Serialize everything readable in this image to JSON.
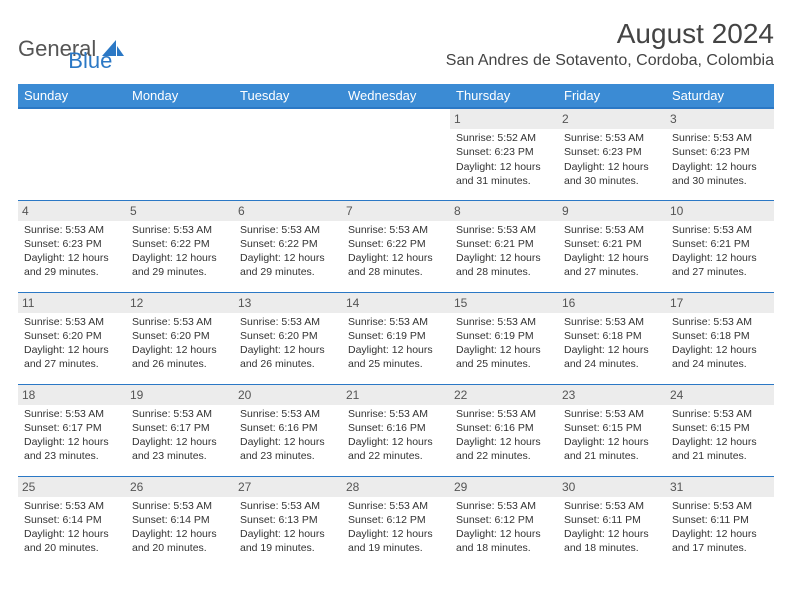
{
  "logo": {
    "text1": "General",
    "text2": "Blue",
    "sail_color": "#2b78c5"
  },
  "header": {
    "title": "August 2024",
    "location": "San Andres de Sotavento, Cordoba, Colombia"
  },
  "colors": {
    "header_bg": "#3b8bd4",
    "header_border": "#2b78c5",
    "daynum_bg": "#ececec",
    "text": "#333333"
  },
  "weekdays": [
    "Sunday",
    "Monday",
    "Tuesday",
    "Wednesday",
    "Thursday",
    "Friday",
    "Saturday"
  ],
  "weeks": [
    [
      {
        "empty": true
      },
      {
        "empty": true
      },
      {
        "empty": true
      },
      {
        "empty": true
      },
      {
        "day": "1",
        "sunrise": "Sunrise: 5:52 AM",
        "sunset": "Sunset: 6:23 PM",
        "daylight": "Daylight: 12 hours and 31 minutes."
      },
      {
        "day": "2",
        "sunrise": "Sunrise: 5:53 AM",
        "sunset": "Sunset: 6:23 PM",
        "daylight": "Daylight: 12 hours and 30 minutes."
      },
      {
        "day": "3",
        "sunrise": "Sunrise: 5:53 AM",
        "sunset": "Sunset: 6:23 PM",
        "daylight": "Daylight: 12 hours and 30 minutes."
      }
    ],
    [
      {
        "day": "4",
        "sunrise": "Sunrise: 5:53 AM",
        "sunset": "Sunset: 6:23 PM",
        "daylight": "Daylight: 12 hours and 29 minutes."
      },
      {
        "day": "5",
        "sunrise": "Sunrise: 5:53 AM",
        "sunset": "Sunset: 6:22 PM",
        "daylight": "Daylight: 12 hours and 29 minutes."
      },
      {
        "day": "6",
        "sunrise": "Sunrise: 5:53 AM",
        "sunset": "Sunset: 6:22 PM",
        "daylight": "Daylight: 12 hours and 29 minutes."
      },
      {
        "day": "7",
        "sunrise": "Sunrise: 5:53 AM",
        "sunset": "Sunset: 6:22 PM",
        "daylight": "Daylight: 12 hours and 28 minutes."
      },
      {
        "day": "8",
        "sunrise": "Sunrise: 5:53 AM",
        "sunset": "Sunset: 6:21 PM",
        "daylight": "Daylight: 12 hours and 28 minutes."
      },
      {
        "day": "9",
        "sunrise": "Sunrise: 5:53 AM",
        "sunset": "Sunset: 6:21 PM",
        "daylight": "Daylight: 12 hours and 27 minutes."
      },
      {
        "day": "10",
        "sunrise": "Sunrise: 5:53 AM",
        "sunset": "Sunset: 6:21 PM",
        "daylight": "Daylight: 12 hours and 27 minutes."
      }
    ],
    [
      {
        "day": "11",
        "sunrise": "Sunrise: 5:53 AM",
        "sunset": "Sunset: 6:20 PM",
        "daylight": "Daylight: 12 hours and 27 minutes."
      },
      {
        "day": "12",
        "sunrise": "Sunrise: 5:53 AM",
        "sunset": "Sunset: 6:20 PM",
        "daylight": "Daylight: 12 hours and 26 minutes."
      },
      {
        "day": "13",
        "sunrise": "Sunrise: 5:53 AM",
        "sunset": "Sunset: 6:20 PM",
        "daylight": "Daylight: 12 hours and 26 minutes."
      },
      {
        "day": "14",
        "sunrise": "Sunrise: 5:53 AM",
        "sunset": "Sunset: 6:19 PM",
        "daylight": "Daylight: 12 hours and 25 minutes."
      },
      {
        "day": "15",
        "sunrise": "Sunrise: 5:53 AM",
        "sunset": "Sunset: 6:19 PM",
        "daylight": "Daylight: 12 hours and 25 minutes."
      },
      {
        "day": "16",
        "sunrise": "Sunrise: 5:53 AM",
        "sunset": "Sunset: 6:18 PM",
        "daylight": "Daylight: 12 hours and 24 minutes."
      },
      {
        "day": "17",
        "sunrise": "Sunrise: 5:53 AM",
        "sunset": "Sunset: 6:18 PM",
        "daylight": "Daylight: 12 hours and 24 minutes."
      }
    ],
    [
      {
        "day": "18",
        "sunrise": "Sunrise: 5:53 AM",
        "sunset": "Sunset: 6:17 PM",
        "daylight": "Daylight: 12 hours and 23 minutes."
      },
      {
        "day": "19",
        "sunrise": "Sunrise: 5:53 AM",
        "sunset": "Sunset: 6:17 PM",
        "daylight": "Daylight: 12 hours and 23 minutes."
      },
      {
        "day": "20",
        "sunrise": "Sunrise: 5:53 AM",
        "sunset": "Sunset: 6:16 PM",
        "daylight": "Daylight: 12 hours and 23 minutes."
      },
      {
        "day": "21",
        "sunrise": "Sunrise: 5:53 AM",
        "sunset": "Sunset: 6:16 PM",
        "daylight": "Daylight: 12 hours and 22 minutes."
      },
      {
        "day": "22",
        "sunrise": "Sunrise: 5:53 AM",
        "sunset": "Sunset: 6:16 PM",
        "daylight": "Daylight: 12 hours and 22 minutes."
      },
      {
        "day": "23",
        "sunrise": "Sunrise: 5:53 AM",
        "sunset": "Sunset: 6:15 PM",
        "daylight": "Daylight: 12 hours and 21 minutes."
      },
      {
        "day": "24",
        "sunrise": "Sunrise: 5:53 AM",
        "sunset": "Sunset: 6:15 PM",
        "daylight": "Daylight: 12 hours and 21 minutes."
      }
    ],
    [
      {
        "day": "25",
        "sunrise": "Sunrise: 5:53 AM",
        "sunset": "Sunset: 6:14 PM",
        "daylight": "Daylight: 12 hours and 20 minutes."
      },
      {
        "day": "26",
        "sunrise": "Sunrise: 5:53 AM",
        "sunset": "Sunset: 6:14 PM",
        "daylight": "Daylight: 12 hours and 20 minutes."
      },
      {
        "day": "27",
        "sunrise": "Sunrise: 5:53 AM",
        "sunset": "Sunset: 6:13 PM",
        "daylight": "Daylight: 12 hours and 19 minutes."
      },
      {
        "day": "28",
        "sunrise": "Sunrise: 5:53 AM",
        "sunset": "Sunset: 6:12 PM",
        "daylight": "Daylight: 12 hours and 19 minutes."
      },
      {
        "day": "29",
        "sunrise": "Sunrise: 5:53 AM",
        "sunset": "Sunset: 6:12 PM",
        "daylight": "Daylight: 12 hours and 18 minutes."
      },
      {
        "day": "30",
        "sunrise": "Sunrise: 5:53 AM",
        "sunset": "Sunset: 6:11 PM",
        "daylight": "Daylight: 12 hours and 18 minutes."
      },
      {
        "day": "31",
        "sunrise": "Sunrise: 5:53 AM",
        "sunset": "Sunset: 6:11 PM",
        "daylight": "Daylight: 12 hours and 17 minutes."
      }
    ]
  ]
}
